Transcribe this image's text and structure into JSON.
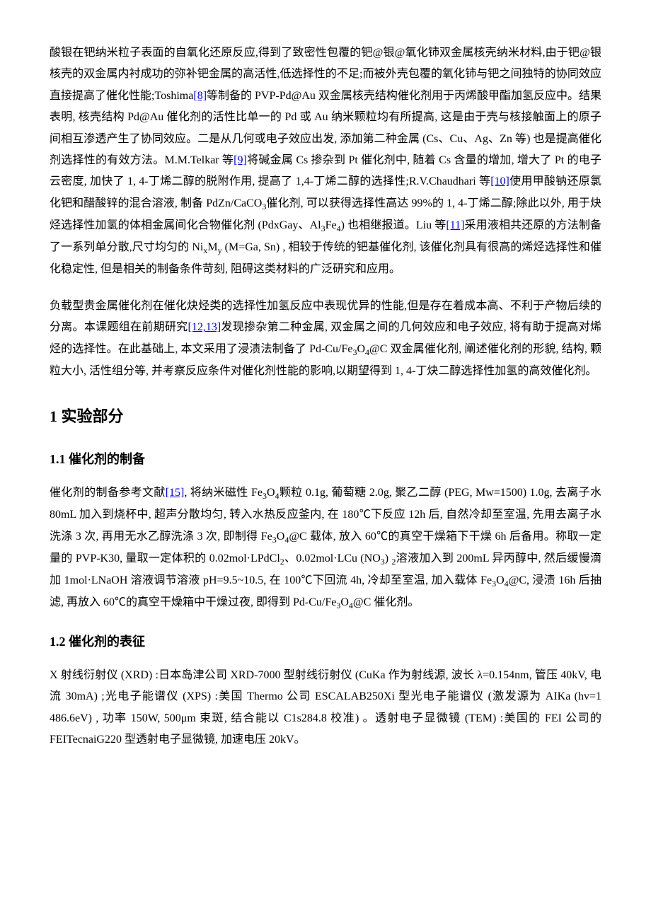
{
  "paragraphs": {
    "p1_a": "酸银在钯纳米粒子表面的自氧化还原反应,得到了致密性包覆的钯@银@氧化铈双金属核壳纳米材料,由于钯@银核壳的双金属内衬成功的弥补钯金属的高活性,低选择性的不足;而被外壳包覆的氧化铈与钯之间独特的协同效应直接提高了催化性能;Toshima",
    "ref8": "[8]",
    "p1_b": "等制备的 PVP-Pd@Au 双金属核壳结构催化剂用于丙烯酸甲酯加氢反应中。结果表明, 核壳结构 Pd@Au 催化剂的活性比单一的 Pd 或 Au 纳米颗粒均有所提高, 这是由于壳与核接触面上的原子间相互渗透产生了协同效应。二是从几何或电子效应出发, 添加第二种金属 (Cs、Cu、Ag、Zn 等) 也是提高催化剂选择性的有效方法。M.M.Telkar 等",
    "ref9": "[9]",
    "p1_c": "将碱金属 Cs 掺杂到 Pt 催化剂中, 随着 Cs 含量的增加, 增大了 Pt 的电子云密度, 加快了 1, 4-丁烯二醇的脱附作用, 提高了 1,4-丁烯二醇的选择性;R.V.Chaudhari 等",
    "ref10": "[10]",
    "p1_d": "使用甲酸钠还原氯化钯和醋酸锌的混合溶液, 制备 PdZn/CaCO",
    "p1_d_sub3": "3",
    "p1_d2": "催化剂, 可以获得选择性高达 99%的 1, 4-丁烯二醇;除此以外, 用于炔烃选择性加氢的体相金属间化合物催化剂 (PdxGay、Al",
    "p1_al_sub3": "3",
    "p1_fe": "Fe",
    "p1_fe_sub4": "4",
    "p1_e": ") 也相继报道。Liu 等",
    "ref11": "[11]",
    "p1_f": "采用液相共还原的方法制备了一系列单分散,尺寸均匀的 Ni",
    "p1_ni_subx": "x",
    "p1_m": "M",
    "p1_m_suby": "y",
    "p1_g": " (M=Ga, Sn) , 相较于传统的钯基催化剂, 该催化剂具有很高的烯烃选择性和催化稳定性, 但是相关的制备条件苛刻, 阻碍这类材料的广泛研究和应用。",
    "p2_a": "负载型贵金属催化剂在催化炔烃类的选择性加氢反应中表现优异的性能,但是存在着成本高、不利于产物后续的分离。本课题组在前期研究",
    "ref1213": "[12,13]",
    "p2_b": "发现掺杂第二种金属, 双金属之间的几何效应和电子效应, 将有助于提高对烯烃的选择性。在此基础上, 本文采用了浸渍法制备了 Pd-Cu/Fe",
    "p2_sub3": "3",
    "p2_o": "O",
    "p2_sub4": "4",
    "p2_c": "@C 双金属催化剂, 阐述催化剂的形貌, 结构, 颗粒大小, 活性组分等, 并考察反应条件对催化剂性能的影响,以期望得到 1, 4-丁炔二醇选择性加氢的高效催化剂。"
  },
  "headings": {
    "h1_1": "1 实验部分",
    "h2_11": "1.1 催化剂的制备",
    "h2_12": "1.2 催化剂的表征"
  },
  "p3": {
    "a": "催化剂的制备参考文献",
    "ref15": "[15]",
    "b": ", 将纳米磁性 Fe",
    "s3a": "3",
    "o_a": "O",
    "s4a": "4",
    "c": "颗粒 0.1g, 葡萄糖 2.0g, 聚乙二醇 (PEG, Mw=1500) 1.0g, 去离子水 80mL 加入到烧杯中, 超声分散均匀, 转入水热反应釜内, 在 180℃下反应 12h 后, 自然冷却至室温, 先用去离子水洗涤 3 次, 再用无水乙醇洗涤 3 次, 即制得 Fe",
    "s3b": "3",
    "o_b": "O",
    "s4b": "4",
    "d": "@C 载体, 放入 60℃的真空干燥箱下干燥 6h 后备用。称取一定量的 PVP-K30, 量取一定体积的 0.02mol·LPdCl",
    "s2a": "2",
    "e": "、0.02mol·LCu (NO",
    "s3c": "3",
    "f": ") ",
    "s2b": "2",
    "g": "溶液加入到 200mL 异丙醇中, 然后缓慢滴加 1mol·LNaOH 溶液调节溶液 pH=9.5~10.5, 在 100℃下回流 4h, 冷却至室温, 加入载体 Fe",
    "s3d": "3",
    "o_c": "O",
    "s4c": "4",
    "h": "@C, 浸渍 16h 后抽滤, 再放入 60℃的真空干燥箱中干燥过夜, 即得到 Pd-Cu/Fe",
    "s3e": "3",
    "o_d": "O",
    "s4d": "4",
    "i": "@C 催化剂。"
  },
  "p4": {
    "a": "X 射线衍射仪 (XRD) :日本岛津公司 XRD-7000 型射线衍射仪 (CuKa 作为射线源, 波长 λ=0.154nm, 管压 40kV, 电流 30mA) ;光电子能谱仪 (XPS) :美国 Thermo 公司 ESCALAB250Xi 型光电子能谱仪 (激发源为 AIKa (hv=1 486.6eV) , 功率 150W, 500μm 束斑, 结合能以 C1s284.8 校准) 。透射电子显微镜 (TEM) :美国的 FEI 公司的 FEITecnaiG220 型透射电子显微镜, 加速电压 20kV。"
  },
  "links": {
    "ref8": "#ref8",
    "ref9": "#ref9",
    "ref10": "#ref10",
    "ref11": "#ref11",
    "ref1213": "#ref12",
    "ref15": "#ref15"
  }
}
